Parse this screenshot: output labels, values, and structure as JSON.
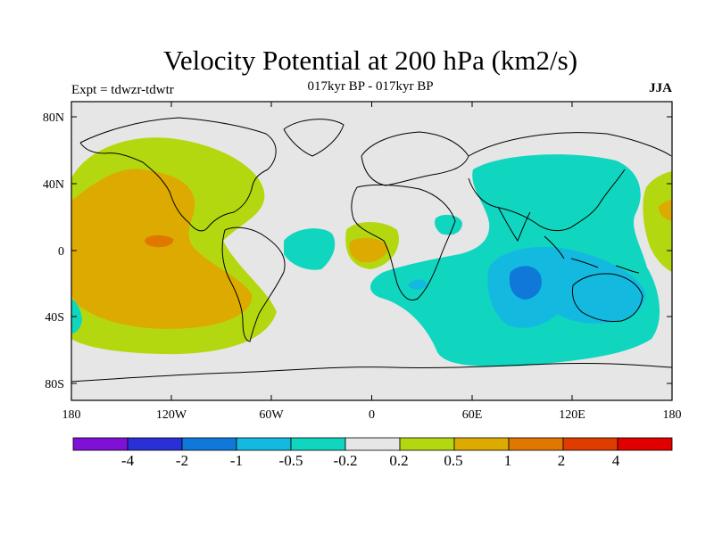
{
  "title": "Velocity Potential at 200 hPa (km2/s)",
  "subtitle": "017kyr BP - 017kyr BP",
  "experiment": "Expt = tdwzr-tdwtr",
  "season": "JJA",
  "axes": {
    "x_ticks": [
      "180",
      "120W",
      "60W",
      "0",
      "60E",
      "120E",
      "180"
    ],
    "y_ticks": [
      "80N",
      "40N",
      "0",
      "40S",
      "80S"
    ]
  },
  "colorbar": {
    "colors": [
      "#7f10d6",
      "#2b2fd6",
      "#0f78d8",
      "#14b9e0",
      "#10d6c0",
      "#e6e6e6",
      "#b4d80f",
      "#dcaa00",
      "#e07800",
      "#e03c00",
      "#e00000"
    ],
    "labels": [
      "-4",
      "-2",
      "-1",
      "-0.5",
      "-0.2",
      "0.2",
      "0.5",
      "1",
      "2",
      "4"
    ]
  }
}
